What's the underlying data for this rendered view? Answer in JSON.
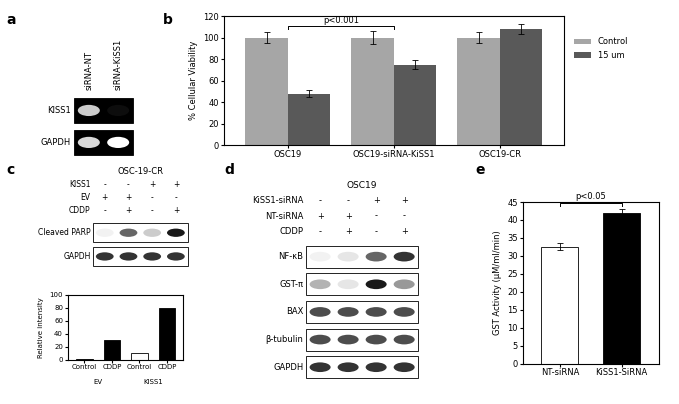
{
  "panel_labels": [
    "a",
    "b",
    "c",
    "d",
    "e"
  ],
  "blot_a": {
    "lanes": [
      "siRNA-NT",
      "siRNA-KiSS1"
    ],
    "bands": [
      {
        "label": "KISS1",
        "intensity": [
          0.8,
          0.05
        ]
      },
      {
        "label": "GAPDH",
        "intensity": [
          0.85,
          1.0
        ]
      }
    ]
  },
  "blot_c": {
    "title": "OSC-19-CR",
    "conditions": [
      {
        "label": "KISS1",
        "signs": [
          "-",
          "-",
          "+",
          "+"
        ]
      },
      {
        "label": "EV",
        "signs": [
          "+",
          "+",
          "-",
          "-"
        ]
      },
      {
        "label": "CDDP",
        "signs": [
          "-",
          "+",
          "-",
          "+"
        ]
      }
    ],
    "bands": [
      {
        "label": "Cleaved PARP",
        "intensity": [
          0.05,
          0.6,
          0.2,
          0.9
        ]
      },
      {
        "label": "GAPDH",
        "intensity": [
          0.8,
          0.8,
          0.8,
          0.8
        ]
      }
    ]
  },
  "blot_d": {
    "title": "OSC19",
    "conditions": [
      {
        "label": "KiSS1-siRNA",
        "signs": [
          "-",
          "-",
          "+",
          "+"
        ]
      },
      {
        "label": "NT-siRNA",
        "signs": [
          "+",
          "+",
          "-",
          "-"
        ]
      },
      {
        "label": "CDDP",
        "signs": [
          "-",
          "+",
          "-",
          "+"
        ]
      }
    ],
    "bands": [
      {
        "label": "NF-κB",
        "intensity": [
          0.05,
          0.1,
          0.6,
          0.8
        ]
      },
      {
        "label": "GST-π",
        "intensity": [
          0.3,
          0.1,
          0.9,
          0.4
        ]
      },
      {
        "label": "BAX",
        "intensity": [
          0.7,
          0.7,
          0.7,
          0.7
        ]
      },
      {
        "label": "β-tubulin",
        "intensity": [
          0.7,
          0.7,
          0.7,
          0.7
        ]
      },
      {
        "label": "GAPDH",
        "intensity": [
          0.8,
          0.8,
          0.8,
          0.8
        ]
      }
    ]
  },
  "chart_data": [
    {
      "type": "bar",
      "panel": "b",
      "categories": [
        "OSC19",
        "OSC19-siRNA-KiSS1",
        "OSC19-CR"
      ],
      "series": [
        {
          "name": "Control",
          "color": "#a6a6a6",
          "values": [
            100,
            100,
            100
          ],
          "errors": [
            5,
            6,
            5
          ]
        },
        {
          "name": "15 um",
          "color": "#595959",
          "values": [
            48,
            75,
            108
          ],
          "errors": [
            3,
            4,
            5
          ]
        }
      ],
      "y_label": "% Cellular Viability",
      "ylim": [
        0,
        120
      ],
      "yticks": [
        0,
        20,
        40,
        60,
        80,
        100,
        120
      ],
      "legend": "right",
      "annotation": {
        "text": "p<0.001",
        "between": [
          "OSC19",
          "OSC19-siRNA-KiSS1"
        ]
      }
    },
    {
      "type": "bar",
      "panel": "c",
      "categories": [
        "Control",
        "CDDP",
        "Control",
        "CDDP"
      ],
      "values": [
        1,
        30,
        10,
        79
      ],
      "colors": [
        "#000000",
        "#000000",
        "#ffffff",
        "#000000"
      ],
      "groups": [
        {
          "label": "EV",
          "categories": 2
        },
        {
          "label": "KISS1",
          "categories": 2
        }
      ],
      "y_label": "Relative intensity",
      "ylim": [
        0,
        100
      ],
      "yticks": [
        0,
        20,
        40,
        60,
        80,
        100
      ]
    },
    {
      "type": "bar",
      "panel": "e",
      "categories": [
        "NT-siRNA",
        "KiSS1-SiRNA"
      ],
      "values": [
        32.5,
        42
      ],
      "errors": [
        1,
        1
      ],
      "colors": [
        "#ffffff",
        "#000000"
      ],
      "y_label": "GST Activity (µM/ml/min)",
      "ylim": [
        0,
        45
      ],
      "yticks": [
        0,
        5,
        10,
        15,
        20,
        25,
        30,
        35,
        40,
        45
      ],
      "annotation": {
        "text": "p<0.05",
        "between": [
          "NT-siRNA",
          "KiSS1-SiRNA"
        ]
      }
    }
  ]
}
